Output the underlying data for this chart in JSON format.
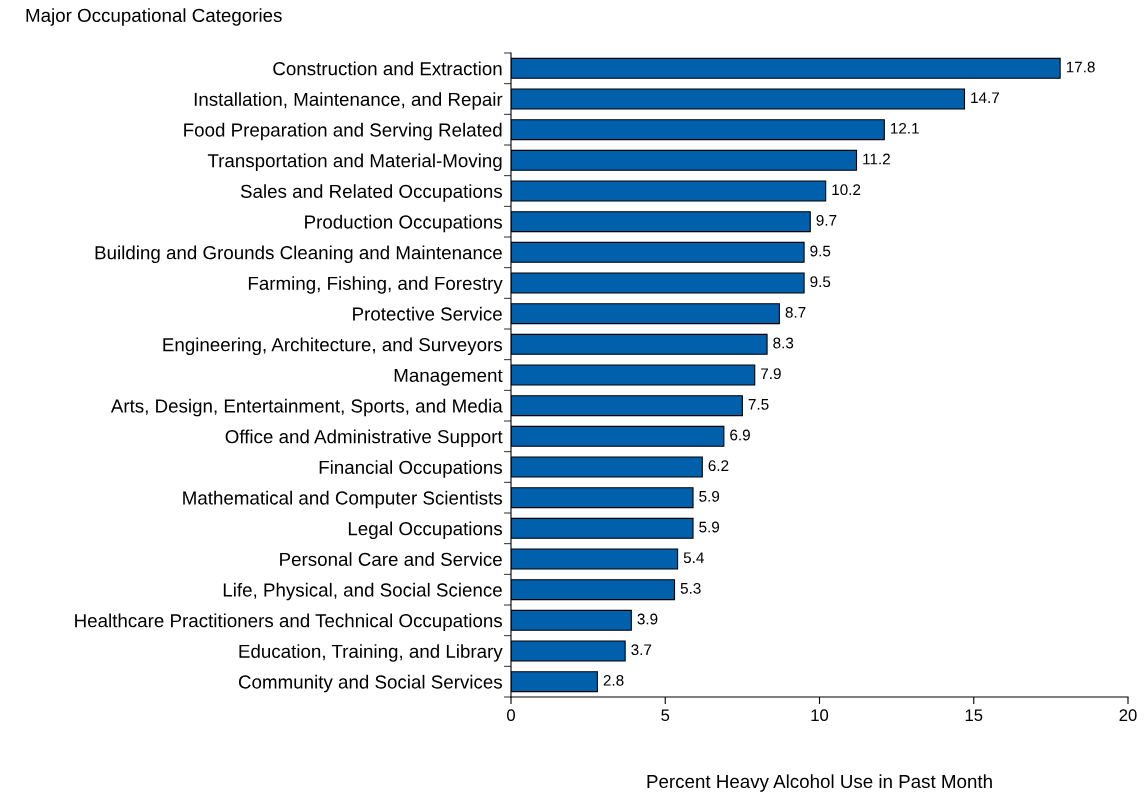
{
  "chart_data": {
    "type": "bar",
    "orientation": "horizontal",
    "ylabel": "Major Occupational Categories",
    "xlabel": "Percent Heavy Alcohol Use in Past Month",
    "categories": [
      "Construction and Extraction",
      "Installation, Maintenance, and Repair",
      "Food Preparation and Serving Related",
      "Transportation and Material-Moving",
      "Sales and Related Occupations",
      "Production Occupations",
      "Building and Grounds Cleaning and Maintenance",
      "Farming, Fishing, and Forestry",
      "Protective Service",
      "Engineering, Architecture, and Surveyors",
      "Management",
      "Arts, Design, Entertainment, Sports, and Media",
      "Office and Administrative Support",
      "Financial Occupations",
      "Mathematical and Computer Scientists",
      "Legal Occupations",
      "Personal Care and Service",
      "Life, Physical, and Social Science",
      "Healthcare Practitioners and Technical Occupations",
      "Education, Training, and Library",
      "Community and Social Services"
    ],
    "values": [
      17.8,
      14.7,
      12.1,
      11.2,
      10.2,
      9.7,
      9.5,
      9.5,
      8.7,
      8.3,
      7.9,
      7.5,
      6.9,
      6.2,
      5.9,
      5.9,
      5.4,
      5.3,
      3.9,
      3.7,
      2.8
    ],
    "color": "#0060ac",
    "data_labels": true,
    "grid": false,
    "legend": false,
    "xlim": [
      0,
      20
    ],
    "xticks": [
      0,
      5,
      10,
      15,
      20
    ]
  }
}
